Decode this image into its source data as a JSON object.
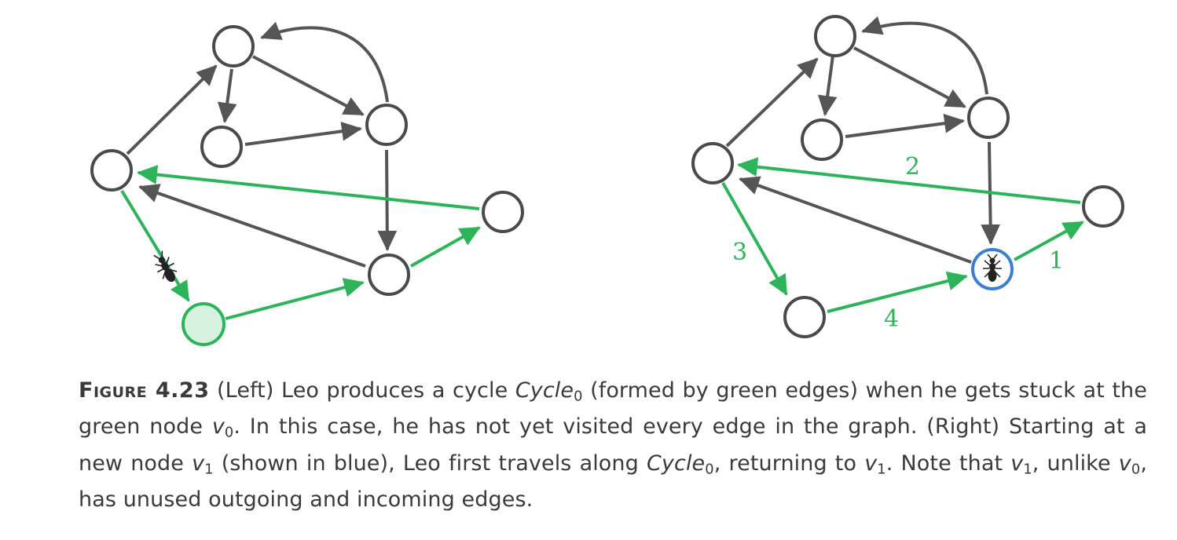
{
  "left_graph": {
    "edge_labels": []
  },
  "right_graph": {
    "edge_labels": [
      "1",
      "2",
      "3",
      "4"
    ]
  },
  "caption": {
    "figure_label": "Figure 4.23",
    "parts": [
      " (Left) Leo produces a cycle ",
      "Cycle",
      "0",
      " (formed by green edges) when he gets stuck at the green node ",
      "v",
      "0",
      ". In this case, he has not yet visited every edge in the graph. (Right) Starting at a new node ",
      "v",
      "1",
      " (shown in blue), Leo first travels along ",
      "Cycle",
      "0",
      ", returning to ",
      "v",
      "1",
      ". Note that ",
      "v",
      "1",
      ", unlike ",
      "v",
      "0",
      ", has unused outgoing and incoming edges."
    ]
  },
  "colors": {
    "green": "#2db35a",
    "blue": "#3b7fd0",
    "dark_edge": "#555555"
  },
  "icons": {
    "ant": "ant-icon"
  }
}
